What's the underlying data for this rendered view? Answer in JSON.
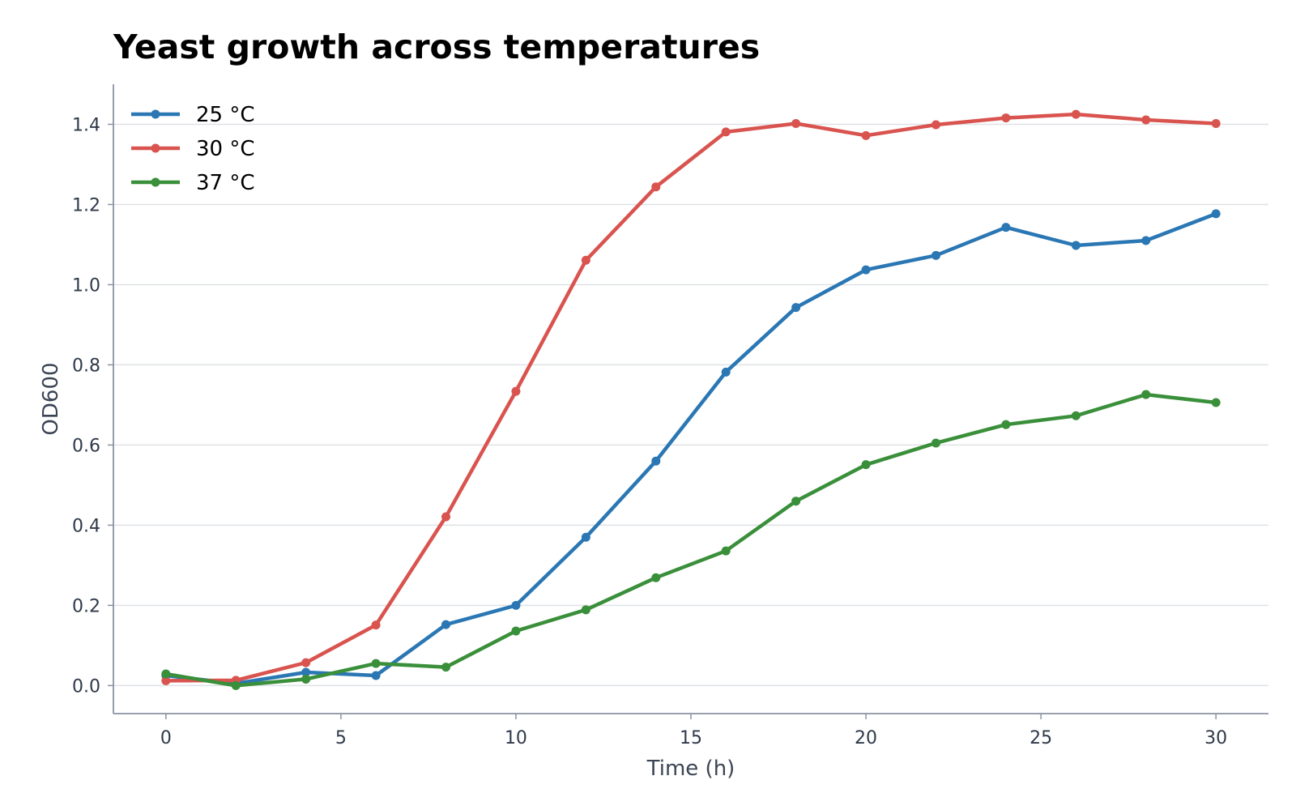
{
  "colors": {
    "series_25": "#2a77b4",
    "series_30": "#d9534f",
    "series_37": "#3a8f3a",
    "grid": "#dfe1e5",
    "axis": "#8a93a3"
  },
  "chart_data": {
    "type": "line",
    "title": "Yeast growth across temperatures",
    "xlabel": "Time (h)",
    "ylabel": "OD600",
    "xlim": [
      -1.5,
      31.5
    ],
    "ylim": [
      -0.07,
      1.5
    ],
    "xticks": [
      0,
      5,
      10,
      15,
      20,
      25,
      30
    ],
    "xtick_labels": [
      "0",
      "5",
      "10",
      "15",
      "20",
      "25",
      "30"
    ],
    "yticks": [
      0.0,
      0.2,
      0.4,
      0.6,
      0.8,
      1.0,
      1.2,
      1.4
    ],
    "ytick_labels": [
      "0.0",
      "0.2",
      "0.4",
      "0.6",
      "0.8",
      "1.0",
      "1.2",
      "1.4"
    ],
    "grid": "horizontal",
    "legend_position": "top-left",
    "x": [
      0,
      2,
      4,
      6,
      8,
      10,
      12,
      14,
      16,
      18,
      20,
      22,
      24,
      26,
      28,
      30
    ],
    "series": [
      {
        "name": "25 °C",
        "color": "#2a77b4",
        "values": [
          0.025,
          0.005,
          0.033,
          0.025,
          0.152,
          0.2,
          0.37,
          0.56,
          0.782,
          0.943,
          1.037,
          1.073,
          1.143,
          1.098,
          1.11,
          1.177
        ]
      },
      {
        "name": "30 °C",
        "color": "#d9534f",
        "values": [
          0.012,
          0.013,
          0.057,
          0.151,
          0.421,
          0.734,
          1.061,
          1.244,
          1.381,
          1.402,
          1.372,
          1.399,
          1.416,
          1.425,
          1.411,
          1.402
        ]
      },
      {
        "name": "37 °C",
        "color": "#3a8f3a",
        "values": [
          0.029,
          0.0,
          0.016,
          0.055,
          0.046,
          0.136,
          0.189,
          0.269,
          0.336,
          0.46,
          0.551,
          0.605,
          0.651,
          0.673,
          0.726,
          0.706
        ]
      }
    ]
  }
}
